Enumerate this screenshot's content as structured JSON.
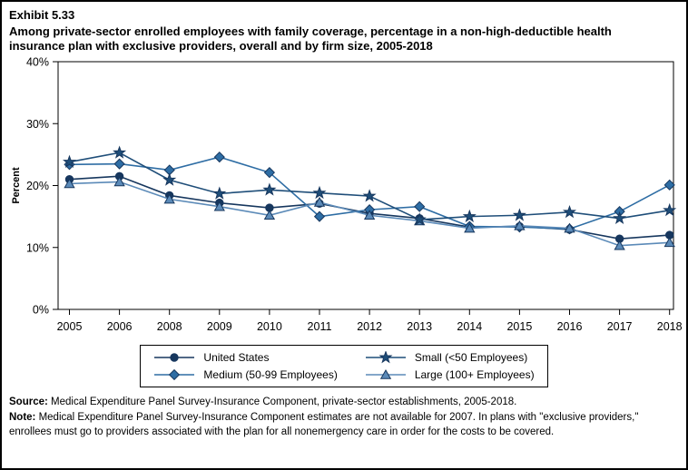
{
  "header": {
    "exhibit": "Exhibit 5.33",
    "title": "Among private-sector enrolled employees with family coverage, percentage in a non-high-deductible health insurance plan with exclusive providers, overall and by firm size, 2005-2018"
  },
  "chart_data": {
    "type": "line",
    "title": "Percentage in a non-high-deductible health insurance plan with exclusive providers, by firm size, 2005-2018",
    "categories": [
      "2005",
      "2006",
      "2008",
      "2009",
      "2010",
      "2011",
      "2012",
      "2013",
      "2014",
      "2015",
      "2016",
      "2017",
      "2018"
    ],
    "xlabel": "",
    "ylabel": "Percent",
    "ylim": [
      0,
      40
    ],
    "ytick_values": [
      0,
      10,
      20,
      30,
      40
    ],
    "ytick_labels": [
      "0%",
      "10%",
      "20%",
      "30%",
      "40%"
    ],
    "grid": false,
    "legend_position": "bottom",
    "note": "No data for 2007; estimates not available",
    "series": [
      {
        "name": "United States",
        "marker": "circle",
        "color": "#17375e",
        "values": [
          21.0,
          21.5,
          18.4,
          17.2,
          16.4,
          17.1,
          15.5,
          14.7,
          13.3,
          13.4,
          12.9,
          11.4,
          12.0
        ]
      },
      {
        "name": "Medium (50-99 Employees)",
        "marker": "diamond",
        "color": "#2e6da4",
        "values": [
          23.4,
          23.5,
          22.5,
          24.6,
          22.1,
          15.0,
          16.1,
          16.6,
          13.4,
          13.3,
          13.0,
          15.8,
          20.1
        ]
      },
      {
        "name": "Small (<50 Employees)",
        "marker": "star",
        "color": "#1f4e79",
        "values": [
          23.8,
          25.3,
          20.9,
          18.7,
          19.3,
          18.8,
          18.3,
          14.5,
          15.0,
          15.2,
          15.7,
          14.7,
          16.0
        ]
      },
      {
        "name": "Large (100+ Employees)",
        "marker": "triangle",
        "color": "#5b8ab8",
        "values": [
          20.3,
          20.6,
          17.8,
          16.6,
          15.2,
          17.3,
          15.2,
          14.3,
          13.1,
          13.5,
          13.1,
          10.3,
          10.8
        ]
      }
    ]
  },
  "footnotes": {
    "source_label": "Source:",
    "source_text": " Medical Expenditure Panel Survey-Insurance Component, private-sector establishments, 2005-2018.",
    "note_label": "Note:",
    "note_text": " Medical Expenditure Panel Survey-Insurance Component estimates are not available for 2007. In plans with \"exclusive providers,\" enrollees must go to providers associated with the plan for all nonemergency care in order for the costs to be covered."
  }
}
